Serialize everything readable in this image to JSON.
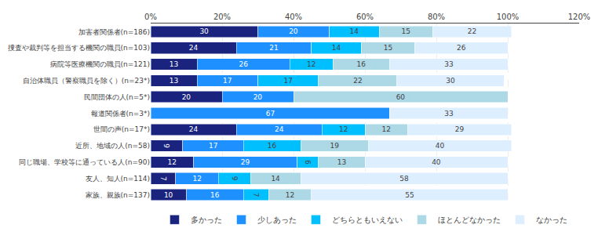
{
  "chart_data": {
    "type": "bar",
    "orientation": "horizontal",
    "stacked": true,
    "data_labels": true,
    "categories": [
      "加害者関係者(n=186)",
      "捜査や裁判等を担当する機関の職員(n=103)",
      "病院等医療機関の職員(n=121)",
      "自治体職員（警察職員を除く）(n=23*)",
      "民間団体の人(n=5*)",
      "報道関係者(n=3*)",
      "世間の声(n=17*)",
      "近所、地域の人(n=58)",
      "同じ職場、学校等に通っている人(n=90)",
      "友人、知人(n=114)",
      "家族、親族(n=137)"
    ],
    "series": [
      {
        "name": "多かった",
        "color": "#1a237e",
        "values": [
          30,
          24,
          13,
          13,
          20,
          0,
          24,
          9,
          12,
          7,
          10
        ]
      },
      {
        "name": "少しあった",
        "color": "#1e90ff",
        "values": [
          20,
          21,
          26,
          17,
          20,
          67,
          24,
          17,
          29,
          12,
          16
        ]
      },
      {
        "name": "どちらともいえない",
        "color": "#00bfff",
        "values": [
          14,
          14,
          12,
          17,
          0,
          0,
          12,
          16,
          6,
          9,
          7
        ]
      },
      {
        "name": "ほとんどなかった",
        "color": "#add8e6",
        "values": [
          15,
          15,
          16,
          22,
          60,
          0,
          12,
          19,
          13,
          14,
          12
        ]
      },
      {
        "name": "なかった",
        "color": "#ddeeff",
        "values": [
          22,
          26,
          33,
          30,
          0,
          33,
          29,
          40,
          40,
          58,
          55
        ]
      }
    ],
    "xlim": [
      0,
      120
    ],
    "xticks": [
      {
        "value": 0,
        "label": "0%"
      },
      {
        "value": 20,
        "label": "20%"
      },
      {
        "value": 40,
        "label": "40%"
      },
      {
        "value": 60,
        "label": "60%"
      },
      {
        "value": 80,
        "label": "80%"
      },
      {
        "value": 100,
        "label": "100%"
      },
      {
        "value": 120,
        "label": "120%"
      }
    ],
    "grid": true,
    "legend": "bottom"
  }
}
